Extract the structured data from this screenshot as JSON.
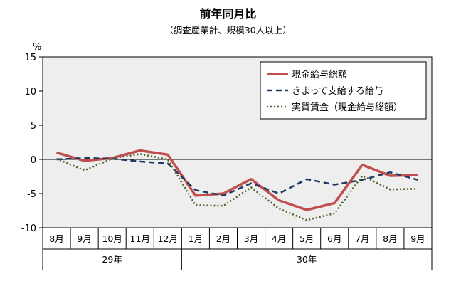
{
  "chart_data": {
    "type": "line",
    "title": "前年同月比",
    "subtitle": "（調査産業計、規模30人以上）",
    "y_unit_label": "%",
    "ylim": [
      -10,
      15
    ],
    "y_ticks": [
      "15",
      "10",
      "5",
      "0",
      "-5",
      "-10"
    ],
    "y_tick_values": [
      15,
      10,
      5,
      0,
      -5,
      -10
    ],
    "categories": [
      "8月",
      "9月",
      "10月",
      "11月",
      "12月",
      "1月",
      "2月",
      "3月",
      "4月",
      "5月",
      "6月",
      "7月",
      "8月",
      "9月"
    ],
    "year_groups": [
      {
        "label": "29年",
        "start": 0,
        "end": 4
      },
      {
        "label": "30年",
        "start": 5,
        "end": 13
      }
    ],
    "legend_position": "top-right",
    "grid": false,
    "series": [
      {
        "name": "現金給与総額",
        "color": "#c0504d",
        "style": "solid",
        "values": [
          1.0,
          -0.2,
          0.2,
          1.3,
          0.7,
          -5.3,
          -5.0,
          -2.9,
          -6.0,
          -7.4,
          -6.4,
          -0.8,
          -2.4,
          -2.3
        ]
      },
      {
        "name": "きまって支給する給与",
        "color": "#1f3864",
        "style": "dashed",
        "values": [
          0.0,
          0.2,
          0.1,
          -0.3,
          -0.6,
          -4.5,
          -5.3,
          -3.5,
          -5.0,
          -2.9,
          -3.7,
          -3.0,
          -1.9,
          -3.0
        ]
      },
      {
        "name": "実質賃金（現金給与総額）",
        "color": "#4f6228",
        "style": "dotted",
        "values": [
          0.1,
          -1.6,
          0.1,
          0.8,
          0.0,
          -6.7,
          -6.8,
          -4.1,
          -7.2,
          -8.9,
          -7.9,
          -2.4,
          -4.4,
          -4.3
        ]
      }
    ]
  }
}
